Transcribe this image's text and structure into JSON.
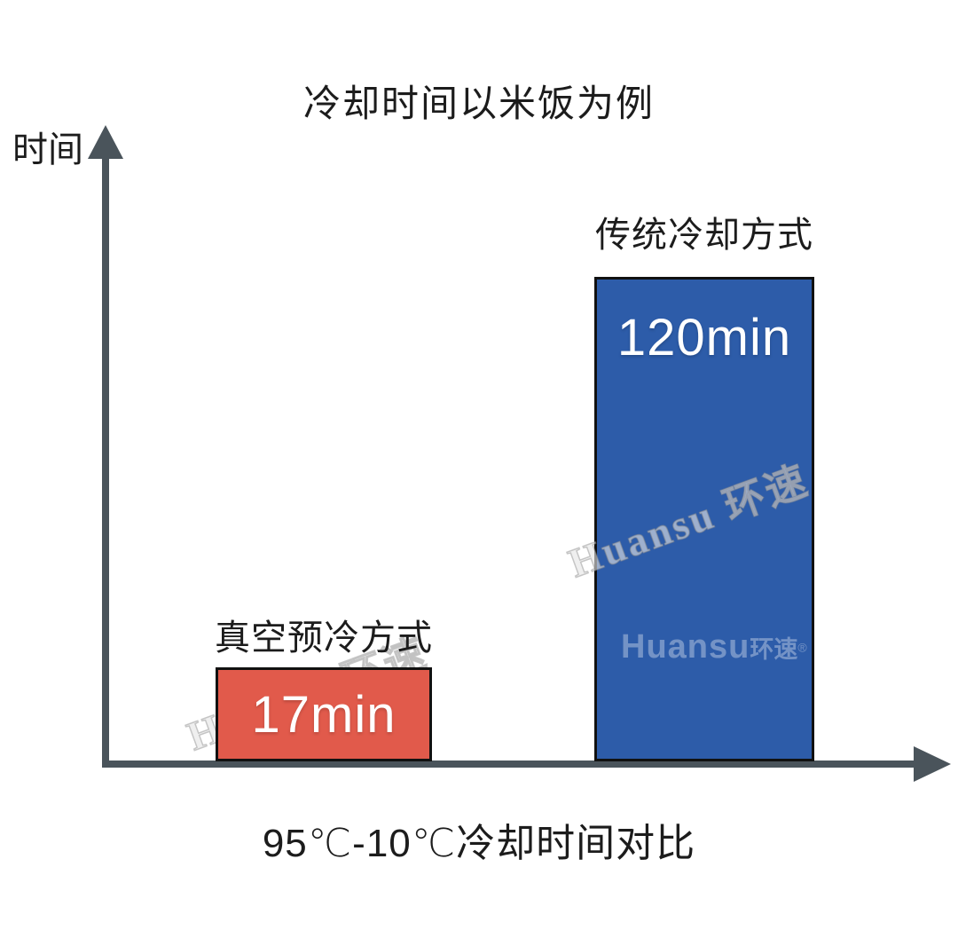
{
  "chart_data": {
    "type": "bar",
    "title": "冷却时间以米饭为例",
    "xlabel": "95℃-10℃冷却时间对比",
    "ylabel": "时间",
    "categories": [
      "真空预冷方式",
      "传统冷却方式"
    ],
    "values": [
      17,
      120
    ],
    "value_labels": [
      "17min",
      "120min"
    ],
    "unit": "min",
    "bar_colors": [
      "#e15a4b",
      "#2d5ca9"
    ],
    "bar_border_color": "#111111",
    "axis_color": "#4a545b",
    "ylim": [
      0,
      130
    ],
    "grid": false,
    "legend": false
  },
  "watermarks": {
    "diagonal_text": "Huansu 环速",
    "logo_main": "Huansu",
    "logo_cjk": "环速",
    "registered": "®"
  }
}
